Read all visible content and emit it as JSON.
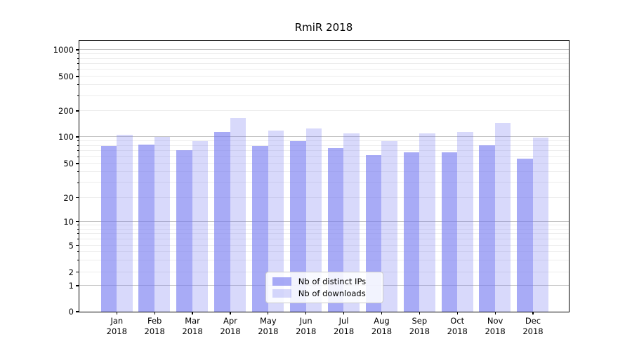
{
  "title": "RmiR 2018",
  "chart_data": {
    "type": "bar",
    "title": "RmiR 2018",
    "scale": "symlog-y",
    "categories": [
      "Jan",
      "Feb",
      "Mar",
      "Apr",
      "May",
      "Jun",
      "Jul",
      "Aug",
      "Sep",
      "Oct",
      "Nov",
      "Dec"
    ],
    "category_year": "2018",
    "series": [
      {
        "name": "Nb of distinct IPs",
        "key": "distinct-ips",
        "color": "rgba(115,120,240,0.62)",
        "values": [
          78,
          81,
          70,
          114,
          79,
          89,
          75,
          62,
          67,
          67,
          80,
          57
        ]
      },
      {
        "name": "Nb of downloads",
        "key": "downloads",
        "color": "rgba(115,120,240,0.28)",
        "values": [
          106,
          100,
          89,
          164,
          117,
          124,
          110,
          89,
          110,
          114,
          146,
          98
        ]
      }
    ],
    "yticks": [
      0,
      1,
      2,
      5,
      10,
      20,
      50,
      100,
      200,
      500,
      1000
    ],
    "ylim": [
      0,
      1270
    ],
    "grid": true,
    "legend_position": "lower center"
  },
  "colors": {
    "bar_base": "#7378f0",
    "grid_major": "#c4c4c4",
    "grid_minor": "#ececec",
    "axis": "#000000",
    "legend_border": "#cccccc",
    "legend_bg": "rgba(255,255,255,0.85)"
  }
}
